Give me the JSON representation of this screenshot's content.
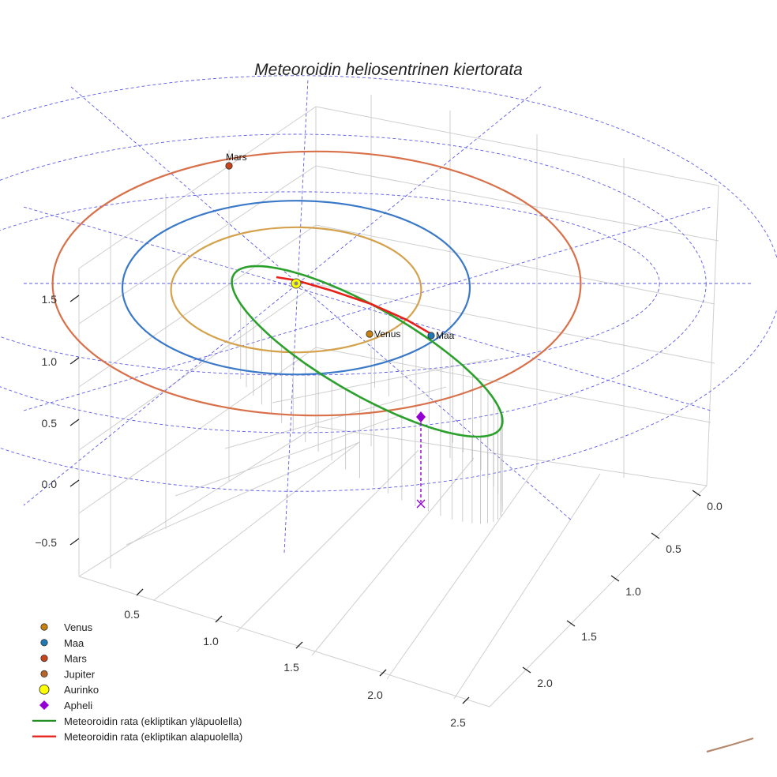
{
  "chart_data": {
    "type": "scatter",
    "projection": "3d",
    "title": "Meteoroidin heliosentrinen kiertorata",
    "xlabel": "",
    "ylabel": "",
    "zlabel": "",
    "axes": {
      "x_ticks": [
        "0.5",
        "1.0",
        "1.5",
        "2.0",
        "2.5"
      ],
      "y_ticks": [
        "0.0",
        "0.5",
        "1.0",
        "1.5",
        "2.0"
      ],
      "z_ticks": [
        "−0.5",
        "0.0",
        "0.5",
        "1.0",
        "1.5"
      ],
      "grid": true
    },
    "orbits": [
      {
        "name": "Venus",
        "radius_au": 0.72,
        "color": "#d4a24c"
      },
      {
        "name": "Maa",
        "radius_au": 1.0,
        "color": "#3a78c8"
      },
      {
        "name": "Mars",
        "radius_au": 1.52,
        "color": "#d8704a"
      }
    ],
    "planets": [
      {
        "name": "Venus",
        "label": "Venus",
        "color": "#c8800f"
      },
      {
        "name": "Maa",
        "label": "Maa",
        "color": "#1f77b4"
      },
      {
        "name": "Mars",
        "label": "Mars",
        "color": "#c8441a"
      }
    ],
    "meteoroid": {
      "above_label": "Meteoroidin rata (ekliptikan yläpuolella)",
      "below_label": "Meteoroidin rata (ekliptikan alapuolella)",
      "above_color": "#2ca02c",
      "below_color": "#e8201a",
      "aphelion_label": "Apheli",
      "aphelion_color": "#9400d3"
    },
    "legend": {
      "position": "lower-left",
      "entries": [
        {
          "label": "Venus",
          "marker": "circle",
          "color": "#c8800f"
        },
        {
          "label": "Maa",
          "marker": "circle",
          "color": "#1f77b4"
        },
        {
          "label": "Mars",
          "marker": "circle",
          "color": "#c8441a"
        },
        {
          "label": "Jupiter",
          "marker": "circle",
          "color": "#b5652a"
        },
        {
          "label": "Aurinko",
          "marker": "big-circle",
          "color": "#ffff00"
        },
        {
          "label": "Apheli",
          "marker": "diamond",
          "color": "#9400d3"
        },
        {
          "label": "Meteoroidin rata (ekliptikan yläpuolella)",
          "marker": "line",
          "color": "#1a8a1a"
        },
        {
          "label": "Meteoroidin rata (ekliptikan alapuolella)",
          "marker": "line",
          "color": "#e8201a"
        }
      ]
    }
  }
}
